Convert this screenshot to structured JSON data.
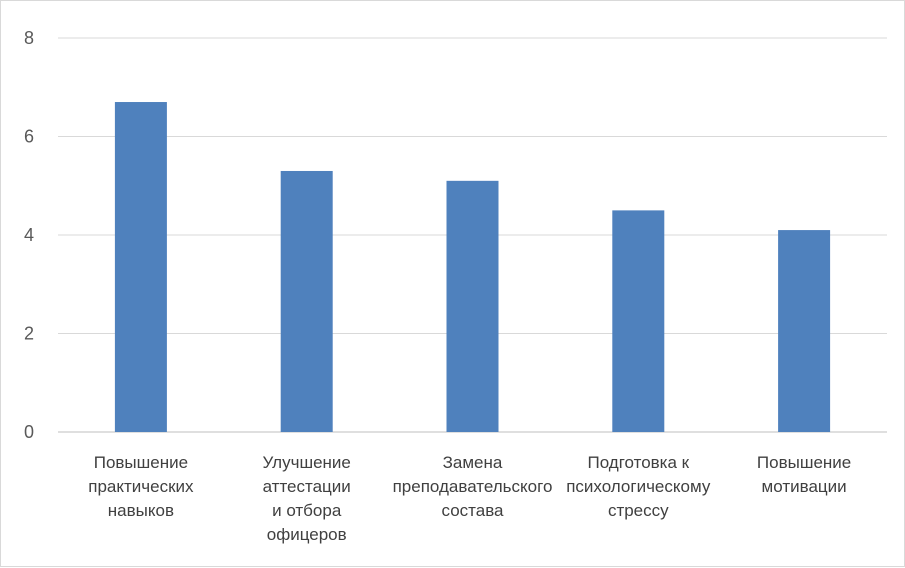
{
  "chart_data": {
    "type": "bar",
    "categories": [
      [
        "Повышение",
        "практических",
        "навыков"
      ],
      [
        "Улучшение",
        "аттестации",
        "и отбора",
        "офицеров"
      ],
      [
        "Замена",
        "преподавательского",
        "состава"
      ],
      [
        "Подготовка к",
        "психологическому",
        "стрессу"
      ],
      [
        "Повышение",
        "мотивации"
      ]
    ],
    "values": [
      6.7,
      5.3,
      5.1,
      4.5,
      4.1
    ],
    "ylim": [
      0,
      8
    ],
    "yticks": [
      0,
      2,
      4,
      6,
      8
    ],
    "title": "",
    "xlabel": "",
    "ylabel": "",
    "grid": true,
    "legend": "none"
  },
  "colors": {
    "bar": "#4f81bd",
    "grid": "#d9d9d9",
    "axis": "#bfbfbf"
  }
}
